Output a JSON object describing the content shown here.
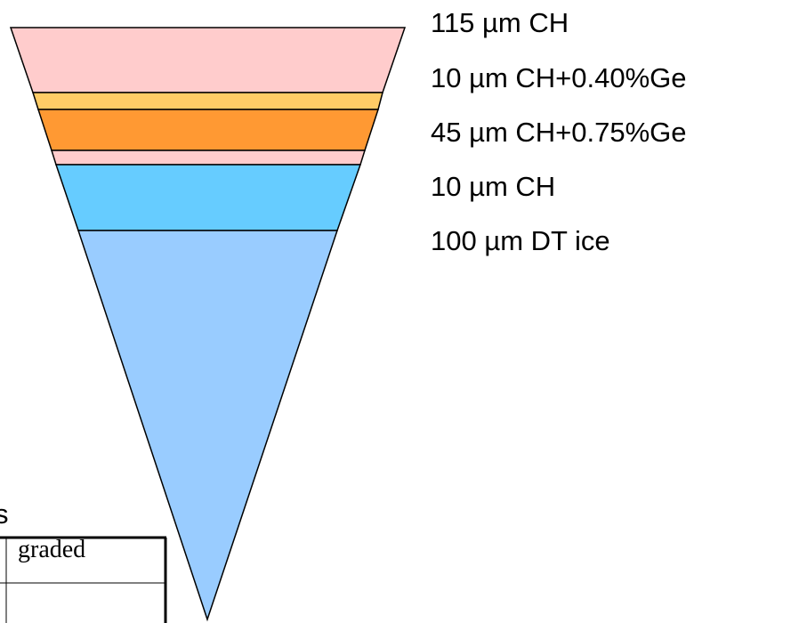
{
  "layers": [
    {
      "label": "115 µm CH",
      "color": "#ffcccc",
      "thickness_um": 115
    },
    {
      "label": "10 µm CH+0.40%Ge",
      "color": "#ffcc66",
      "thickness_um": 10
    },
    {
      "label": "45 µm CH+0.75%Ge",
      "color": "#ff9933",
      "thickness_um": 45
    },
    {
      "label": "10 µm CH",
      "color": "#ffcccc",
      "thickness_um": 10
    },
    {
      "label": "100 µm DT ice",
      "color": "#66ccff",
      "thickness_um": 100
    }
  ],
  "gas_color": "#99ccff",
  "stub_text": "s",
  "table_cell": "graded"
}
